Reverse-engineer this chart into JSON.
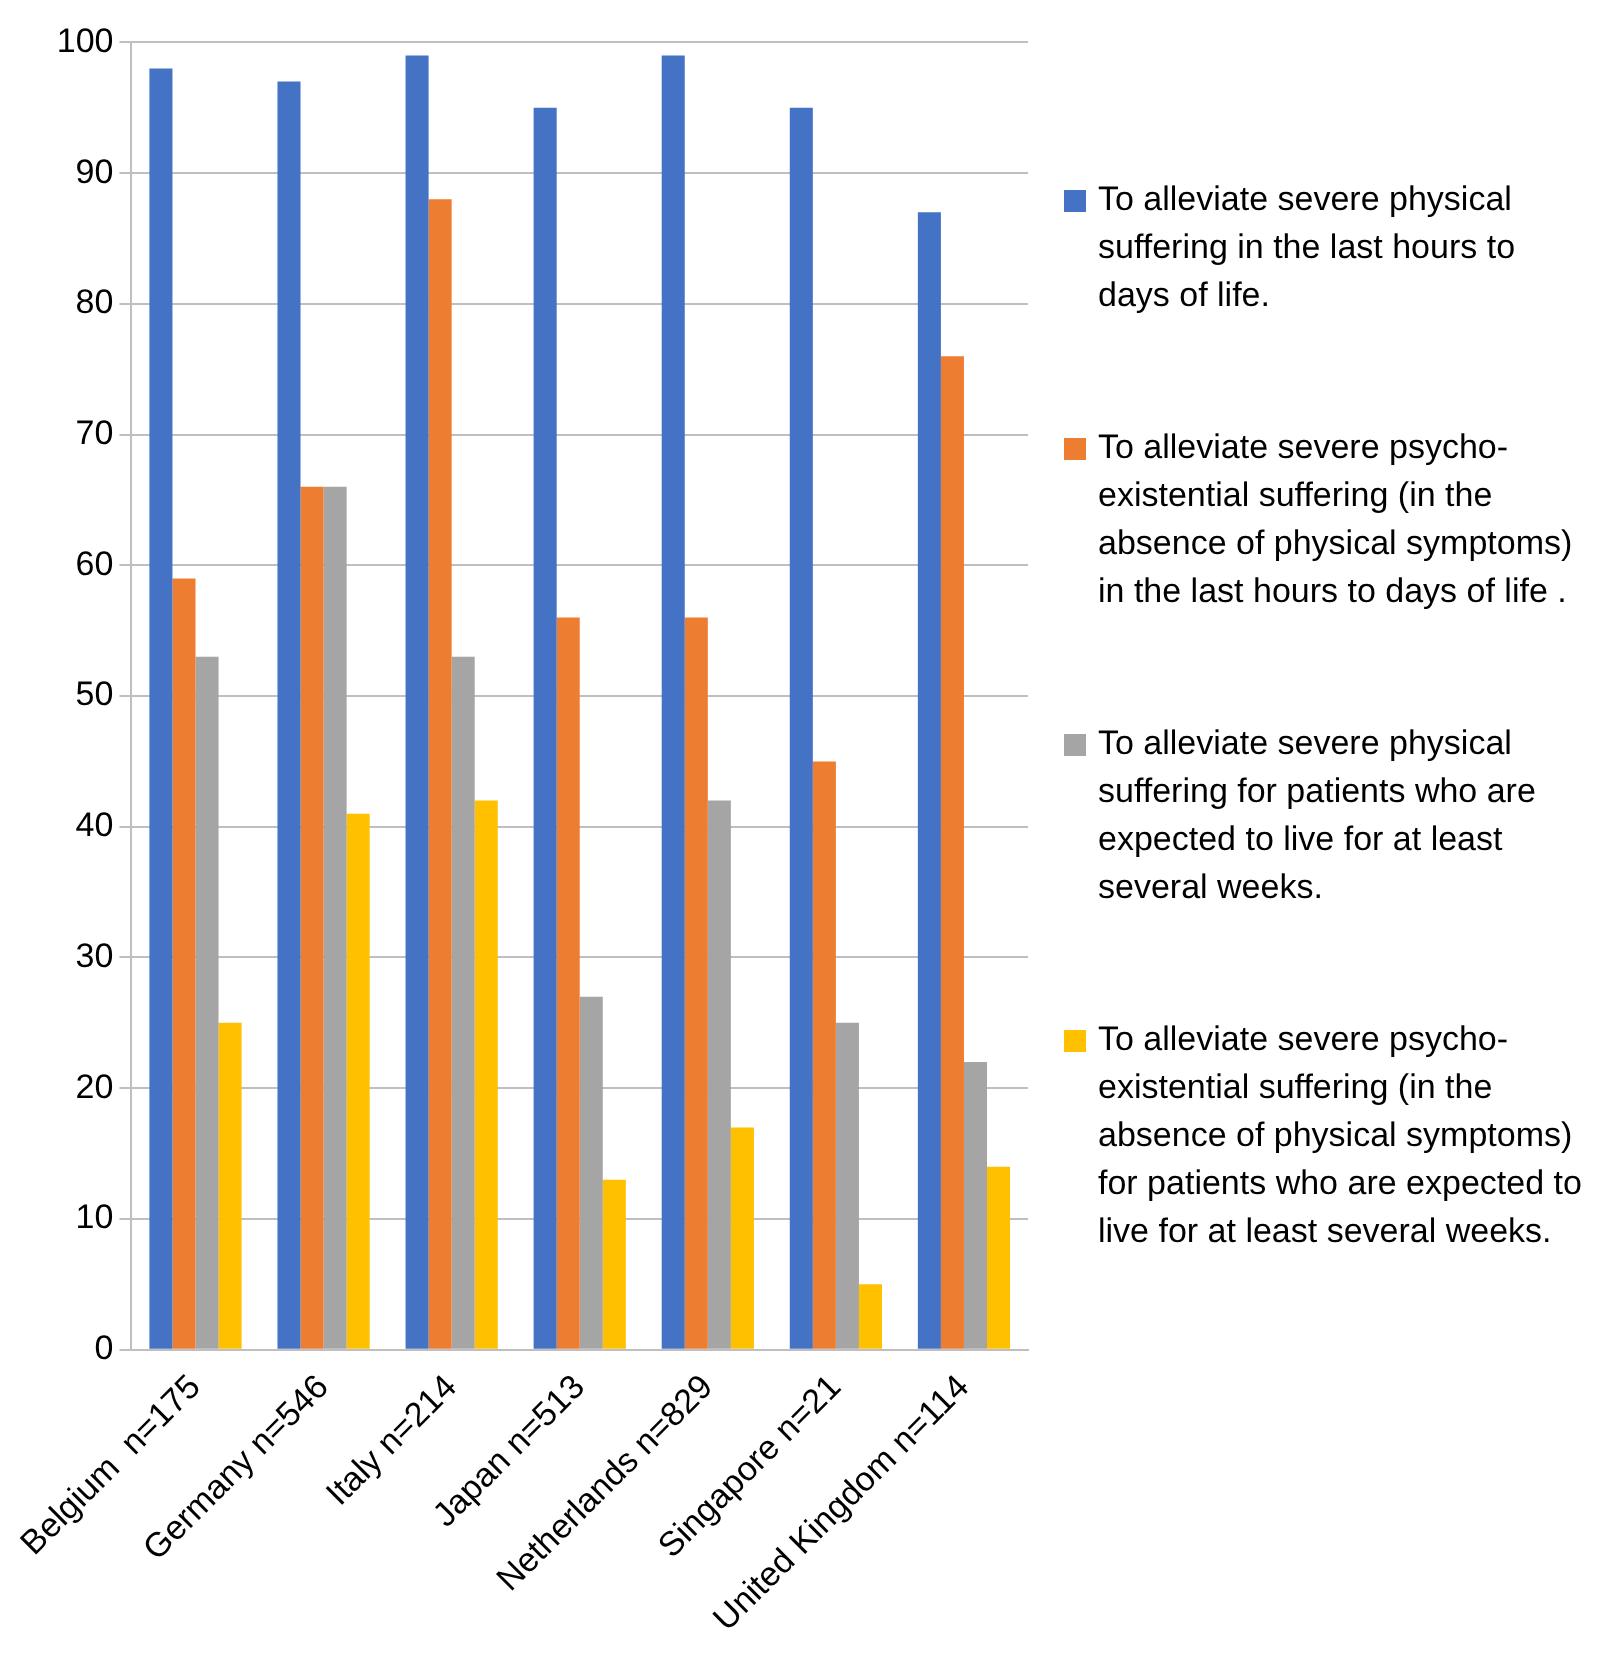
{
  "chart_data": {
    "type": "bar",
    "categories": [
      "Belgium  n=175",
      "Germany n=546",
      "Italy n=214",
      "Japan n=513",
      "Netherlands n=829",
      "Singapore n=21",
      "United Kingdom n=114"
    ],
    "series": [
      {
        "name": "To alleviate severe physical suffering in the last hours to days of life.",
        "color": "#4472c4",
        "values": [
          98,
          97,
          99,
          95,
          99,
          95,
          87
        ]
      },
      {
        "name": "To alleviate severe psycho-existential suffering (in the absence of physical symptoms) in the last hours to days of life .",
        "color": "#ed7d31",
        "values": [
          59,
          66,
          88,
          56,
          56,
          45,
          76
        ]
      },
      {
        "name": "To alleviate severe physical suffering for patients who are expected to live for at least several weeks.",
        "color": "#a5a5a5",
        "values": [
          53,
          66,
          53,
          27,
          42,
          25,
          22
        ]
      },
      {
        "name": "To alleviate severe psycho-existential suffering (in the absence of physical symptoms) for patients who are expected to live for at least several weeks.",
        "color": "#ffc000",
        "values": [
          25,
          41,
          42,
          13,
          17,
          5,
          14
        ]
      }
    ],
    "ylim": [
      0,
      100
    ],
    "yticks": [
      0,
      10,
      20,
      30,
      40,
      50,
      60,
      70,
      80,
      90,
      100
    ],
    "grid": "y",
    "legend": "right"
  }
}
